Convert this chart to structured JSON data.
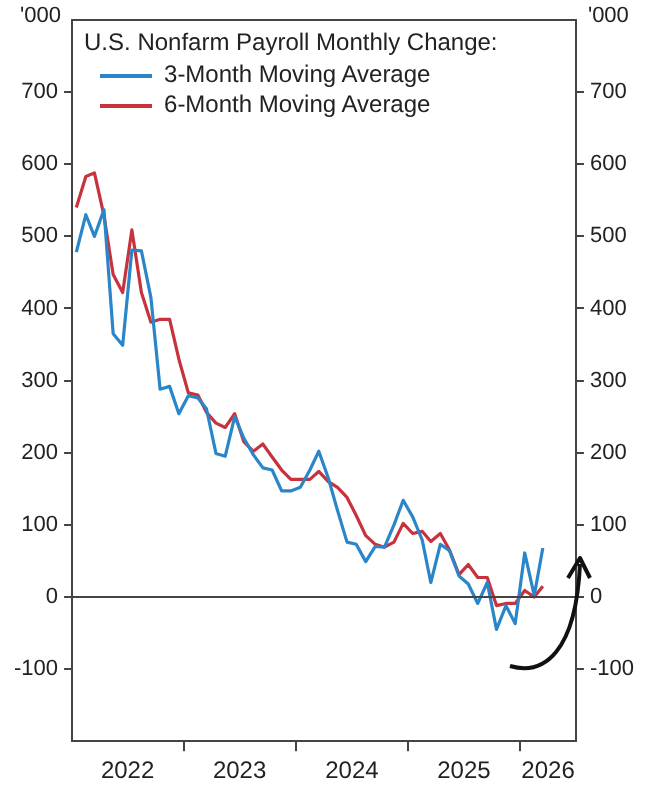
{
  "chart_data": {
    "type": "line",
    "legend_title": "U.S. Nonfarm Payroll Monthly Change:",
    "ylabel": "'000",
    "y2label": "'000",
    "x": [
      "2022-01-15",
      "2022-02-15",
      "2022-03-15",
      "2022-04-15",
      "2022-05-15",
      "2022-06-15",
      "2022-07-15",
      "2022-08-15",
      "2022-09-15",
      "2022-10-15",
      "2022-11-15",
      "2022-12-15",
      "2023-01-15",
      "2023-02-15",
      "2023-03-15",
      "2023-04-15",
      "2023-05-15",
      "2023-06-15",
      "2023-07-15",
      "2023-08-15",
      "2023-09-15",
      "2023-10-15",
      "2023-11-15",
      "2023-12-15",
      "2024-01-15",
      "2024-02-15",
      "2024-03-15",
      "2024-04-15",
      "2024-05-15",
      "2024-06-15",
      "2024-07-15",
      "2024-08-15",
      "2024-09-15",
      "2024-10-15",
      "2024-11-15",
      "2024-12-15",
      "2025-01-15",
      "2025-02-15",
      "2025-03-15",
      "2025-04-15",
      "2025-05-15",
      "2025-06-15",
      "2025-07-15",
      "2025-08-15",
      "2025-09-15",
      "2025-10-15",
      "2025-11-15",
      "2025-12-15",
      "2026-01-15",
      "2026-02-15",
      "2026-03-15"
    ],
    "series": [
      {
        "name": "3-Month Moving Average",
        "color": "#2a86c8",
        "values": [
          478,
          530,
          500,
          537,
          365,
          349,
          481,
          480,
          415,
          288,
          292,
          254,
          279,
          276,
          261,
          199,
          195,
          250,
          220,
          197,
          179,
          176,
          147,
          147,
          152,
          176,
          202,
          165,
          120,
          76,
          73,
          49,
          70,
          69,
          100,
          134,
          111,
          79,
          20,
          73,
          64,
          29,
          18,
          -9,
          20,
          -45,
          -12,
          -37,
          61,
          2,
          68
        ]
      },
      {
        "name": "6-Month Moving Average",
        "color": "#c8323c",
        "values": [
          540,
          583,
          588,
          529,
          447,
          422,
          509,
          422,
          381,
          385,
          385,
          330,
          283,
          280,
          256,
          241,
          235,
          254,
          215,
          202,
          212,
          194,
          176,
          163,
          163,
          163,
          174,
          160,
          152,
          138,
          113,
          85,
          73,
          69,
          76,
          102,
          88,
          91,
          77,
          88,
          65,
          31,
          45,
          27,
          27,
          -12,
          -9,
          -9,
          9,
          0,
          15
        ]
      }
    ],
    "xlim": [
      "2022-01-01",
      "2026-07-01"
    ],
    "xticks": [
      {
        "value": "2022-07-01",
        "label": "2022"
      },
      {
        "value": "2023-01-01",
        "label": null
      },
      {
        "value": "2023-07-01",
        "label": "2023"
      },
      {
        "value": "2024-01-01",
        "label": null
      },
      {
        "value": "2024-07-01",
        "label": "2024"
      },
      {
        "value": "2025-01-01",
        "label": null
      },
      {
        "value": "2025-07-01",
        "label": "2025"
      },
      {
        "value": "2026-01-01",
        "label": null
      },
      {
        "value": "2026-04-01",
        "label": "2026"
      }
    ],
    "ylim": [
      -200,
      800
    ],
    "yticks": [
      -100,
      0,
      100,
      200,
      300,
      400,
      500,
      600,
      700
    ],
    "y2lim": [
      -200,
      800
    ],
    "y2ticks": [
      -100,
      0,
      100,
      200,
      300,
      400,
      500,
      600,
      700
    ],
    "ref_lines": [
      {
        "axis": "y",
        "value": 0,
        "color": "#444444"
      }
    ],
    "legend": "top left",
    "grid": false,
    "marker": "none",
    "line_style": "solid"
  }
}
